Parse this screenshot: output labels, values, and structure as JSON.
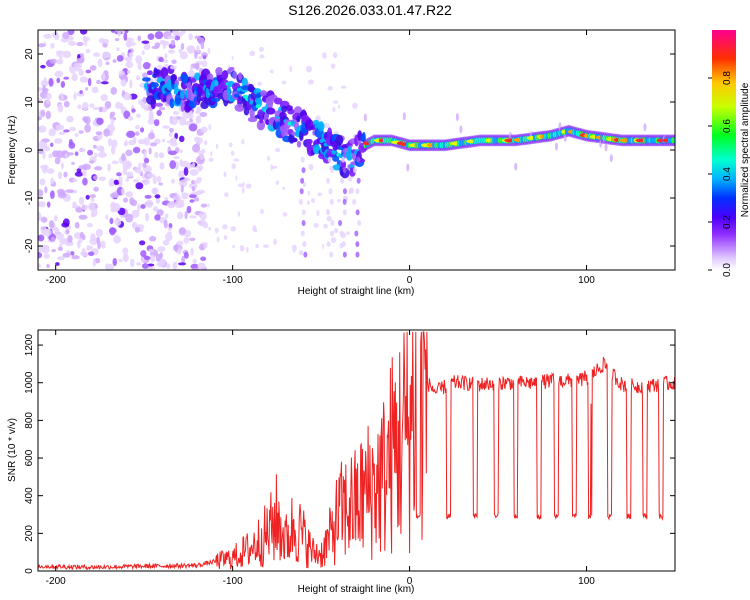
{
  "title": "S126.2026.033.01.47.R22",
  "chart_data": [
    {
      "type": "heatmap",
      "name": "spectrogram",
      "xlabel": "Height of straight line (km)",
      "ylabel": "Frequency (Hz)",
      "xlim": [
        -210,
        150
      ],
      "ylim": [
        -25,
        25
      ],
      "xticks": [
        -200,
        -100,
        0,
        100
      ],
      "yticks": [
        -20,
        -10,
        0,
        10,
        20
      ],
      "colorbar": {
        "label": "Normalized spectral amplitude",
        "range": [
          0,
          1
        ],
        "ticks": [
          "0.0",
          "0.2",
          "0.4",
          "0.6",
          "0.8"
        ]
      },
      "ridge_track": {
        "x_km": [
          -145,
          -130,
          -120,
          -110,
          -100,
          -90,
          -80,
          -70,
          -60,
          -50,
          -40,
          -35,
          -30,
          -25,
          -20,
          -10,
          0,
          10,
          20,
          40,
          60,
          80,
          90,
          100,
          120,
          150
        ],
        "freq_hz": [
          13,
          12,
          12,
          13,
          14,
          10,
          8,
          6,
          4,
          2,
          -1,
          -2,
          -1,
          1,
          2,
          2,
          1,
          1,
          1,
          2,
          2,
          3,
          4,
          3,
          2,
          2
        ]
      }
    },
    {
      "type": "line",
      "name": "snr",
      "xlabel": "Height of straight line (km)",
      "ylabel": "SNR (10 * v/v)",
      "xlim": [
        -210,
        150
      ],
      "ylim": [
        0,
        1280
      ],
      "xticks": [
        -200,
        -100,
        0,
        100
      ],
      "yticks": [
        0,
        200,
        400,
        600,
        800,
        1000,
        1200
      ],
      "color": "#ee2222",
      "series": [
        {
          "name": "SNR",
          "x": [
            -210,
            -180,
            -150,
            -120,
            -110,
            -100,
            -90,
            -80,
            -75,
            -70,
            -65,
            -60,
            -55,
            -50,
            -45,
            -40,
            -35,
            -30,
            -25,
            -20,
            -15,
            -10,
            -5,
            0,
            5,
            10,
            15,
            20,
            25,
            30,
            40,
            50,
            60,
            70,
            80,
            90,
            100,
            110,
            120,
            130,
            140,
            150
          ],
          "y": [
            25,
            20,
            25,
            30,
            50,
            70,
            120,
            200,
            280,
            160,
            250,
            180,
            100,
            90,
            180,
            300,
            340,
            350,
            420,
            450,
            500,
            620,
            700,
            800,
            920,
            1000,
            950,
            980,
            1000,
            1000,
            990,
            1000,
            1000,
            1000,
            1010,
            1010,
            1020,
            1100,
            990,
            980,
            990,
            1000
          ]
        }
      ],
      "dropouts_km": [
        5,
        22,
        37,
        49,
        60,
        73,
        83,
        93,
        102,
        113,
        124,
        133,
        142
      ],
      "dropout_level": 290
    }
  ]
}
